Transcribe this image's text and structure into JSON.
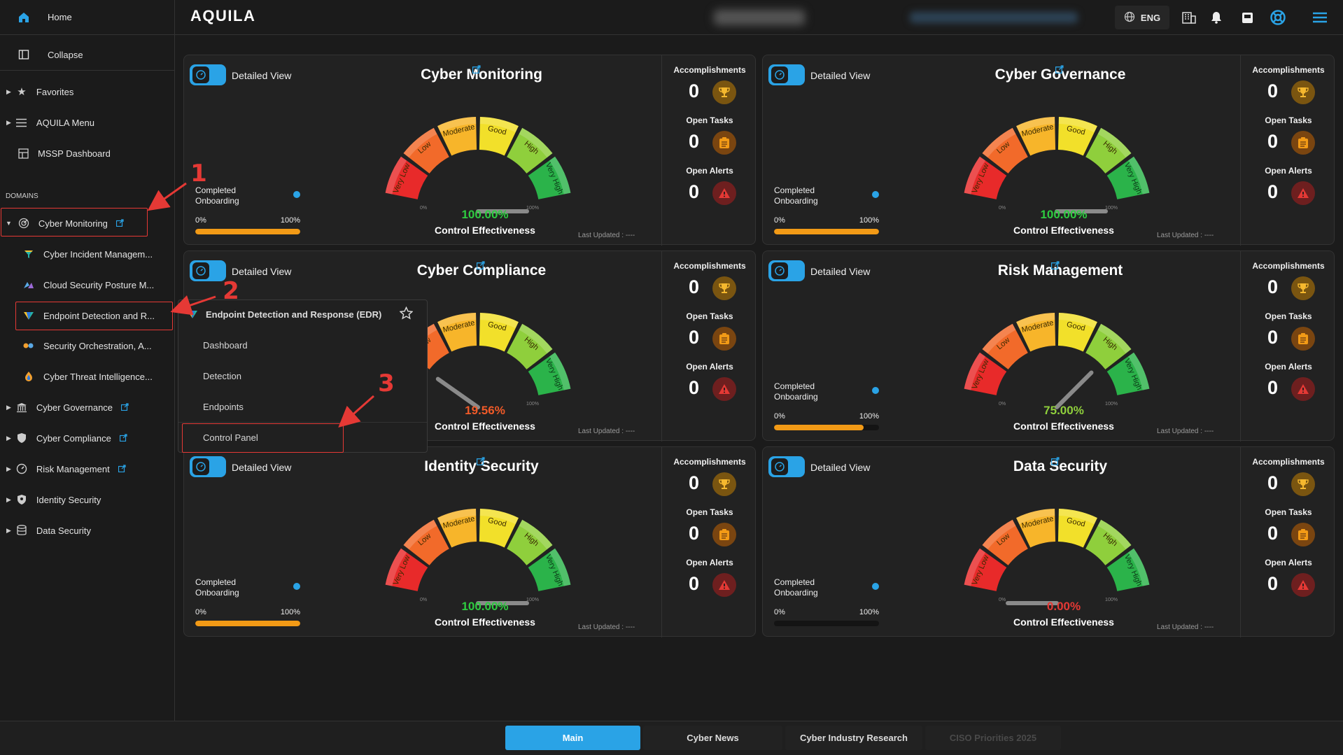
{
  "topbar": {
    "logo": "AQUILA",
    "language": "ENG"
  },
  "sidebar": {
    "home": "Home",
    "collapse": "Collapse",
    "favorites": "Favorites",
    "aquila_menu": "AQUILA Menu",
    "mssp_dashboard": "MSSP Dashboard",
    "domains_heading": "DOMAINS",
    "domains": [
      {
        "label": "Cyber Monitoring",
        "expanded": true
      },
      {
        "label": "Cyber Governance"
      },
      {
        "label": "Cyber Compliance"
      },
      {
        "label": "Risk Management"
      },
      {
        "label": "Identity Security"
      },
      {
        "label": "Data Security"
      }
    ],
    "sub_items": [
      "Cyber Incident Managem...",
      "Cloud Security Posture M...",
      "Endpoint Detection and R...",
      "Security Orchestration, A...",
      "Cyber Threat Intelligence..."
    ]
  },
  "popup": {
    "title": "Endpoint Detection and Response (EDR)",
    "items": [
      "Dashboard",
      "Detection",
      "Endpoints",
      "Control Panel"
    ]
  },
  "annotations": [
    "1",
    "2",
    "3"
  ],
  "common": {
    "detailed_view": "Detailed View",
    "completed_onboarding": "Completed Onboarding",
    "onb_min": "0%",
    "onb_max": "100%",
    "control_effectiveness": "Control Effectiveness",
    "last_updated": "Last Updated : ----",
    "accomplishments": "Accomplishments",
    "open_tasks": "Open Tasks",
    "open_alerts": "Open Alerts",
    "gauge_labels": [
      "Very Low",
      "Low",
      "Moderate",
      "Good",
      "High",
      "Very High"
    ],
    "gauge_min": "0%",
    "gauge_max": "100%"
  },
  "cards": [
    {
      "title": "Cyber Monitoring",
      "effectiveness": "100.00%",
      "effectiveness_value": 100,
      "pct_color": "#2ecc40",
      "onboarding": 100,
      "accomplishments": "0",
      "open_tasks": "0",
      "open_alerts": "0"
    },
    {
      "title": "Cyber Governance",
      "effectiveness": "100.00%",
      "effectiveness_value": 100,
      "pct_color": "#2ecc40",
      "onboarding": 100,
      "accomplishments": "0",
      "open_tasks": "0",
      "open_alerts": "0"
    },
    {
      "title": "Cyber Compliance",
      "effectiveness": "19.56%",
      "effectiveness_value": 19.56,
      "pct_color": "#f05a28",
      "onboarding": 100,
      "accomplishments": "0",
      "open_tasks": "0",
      "open_alerts": "0"
    },
    {
      "title": "Risk Management",
      "effectiveness": "75.00%",
      "effectiveness_value": 75,
      "pct_color": "#8fcf3c",
      "onboarding": 85,
      "accomplishments": "0",
      "open_tasks": "0",
      "open_alerts": "0"
    },
    {
      "title": "Identity Security",
      "effectiveness": "100.00%",
      "effectiveness_value": 100,
      "pct_color": "#2ecc40",
      "onboarding": 100,
      "accomplishments": "0",
      "open_tasks": "0",
      "open_alerts": "0"
    },
    {
      "title": "Data Security",
      "effectiveness": "0.00%",
      "effectiveness_value": 0,
      "pct_color": "#e53935",
      "onboarding": 0,
      "accomplishments": "0",
      "open_tasks": "0",
      "open_alerts": "0"
    }
  ],
  "tabs": [
    {
      "label": "Main",
      "active": true
    },
    {
      "label": "Cyber News"
    },
    {
      "label": "Cyber Industry Research"
    },
    {
      "label": "CISO Priorities 2025",
      "disabled": true
    }
  ],
  "colors": {
    "accent": "#2aa3e6",
    "annotation": "#e53935",
    "onboarding_fill": "#f29a16"
  }
}
